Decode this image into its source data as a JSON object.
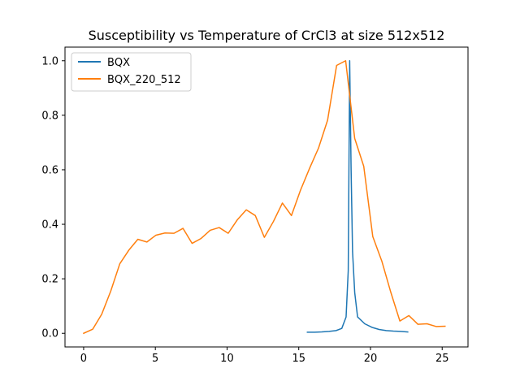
{
  "chart_data": {
    "type": "line",
    "title": "Susceptibility vs Temperature of CrCl3 at size 512x512",
    "xlabel": "",
    "ylabel": "",
    "xlim": [
      -1.3,
      26.8
    ],
    "ylim": [
      -0.05,
      1.05
    ],
    "x_ticks": [
      0,
      5,
      10,
      15,
      20,
      25
    ],
    "y_ticks": [
      0.0,
      0.2,
      0.4,
      0.6,
      0.8,
      1.0
    ],
    "x_tick_labels": [
      "0",
      "5",
      "10",
      "15",
      "20",
      "25"
    ],
    "y_tick_labels": [
      "0.0",
      "0.2",
      "0.4",
      "0.6",
      "0.8",
      "1.0"
    ],
    "grid": false,
    "legend_position": "top-left",
    "series": [
      {
        "name": "BQX",
        "color": "#1f77b4",
        "x": [
          15.6,
          16.1,
          16.6,
          17.1,
          17.6,
          18.0,
          18.3,
          18.45,
          18.55,
          18.65,
          18.75,
          18.9,
          19.1,
          19.6,
          20.1,
          20.6,
          21.1,
          21.6,
          22.1,
          22.6
        ],
        "y": [
          0.004,
          0.004,
          0.005,
          0.007,
          0.01,
          0.018,
          0.06,
          0.23,
          1.0,
          0.6,
          0.3,
          0.15,
          0.06,
          0.035,
          0.022,
          0.014,
          0.01,
          0.008,
          0.007,
          0.005
        ]
      },
      {
        "name": "BQX_220_512",
        "color": "#ff7f0e",
        "x": [
          0,
          0.63,
          1.26,
          1.89,
          2.52,
          3.15,
          3.78,
          4.41,
          5.04,
          5.67,
          6.3,
          6.93,
          7.56,
          8.19,
          8.82,
          9.45,
          10.08,
          10.71,
          11.34,
          11.97,
          12.6,
          13.23,
          13.86,
          14.49,
          15.12,
          15.75,
          16.38,
          17.01,
          17.64,
          18.27,
          18.9,
          19.53,
          20.16,
          20.79,
          21.42,
          22.05,
          22.68,
          23.31,
          23.94,
          24.57,
          25.2
        ],
        "y": [
          0.0,
          0.015,
          0.07,
          0.155,
          0.255,
          0.305,
          0.345,
          0.335,
          0.36,
          0.368,
          0.367,
          0.385,
          0.33,
          0.348,
          0.378,
          0.388,
          0.367,
          0.416,
          0.453,
          0.432,
          0.352,
          0.41,
          0.478,
          0.432,
          0.525,
          0.605,
          0.68,
          0.782,
          0.983,
          1.0,
          0.715,
          0.613,
          0.355,
          0.265,
          0.15,
          0.045,
          0.065,
          0.033,
          0.035,
          0.025,
          0.026
        ]
      }
    ]
  }
}
